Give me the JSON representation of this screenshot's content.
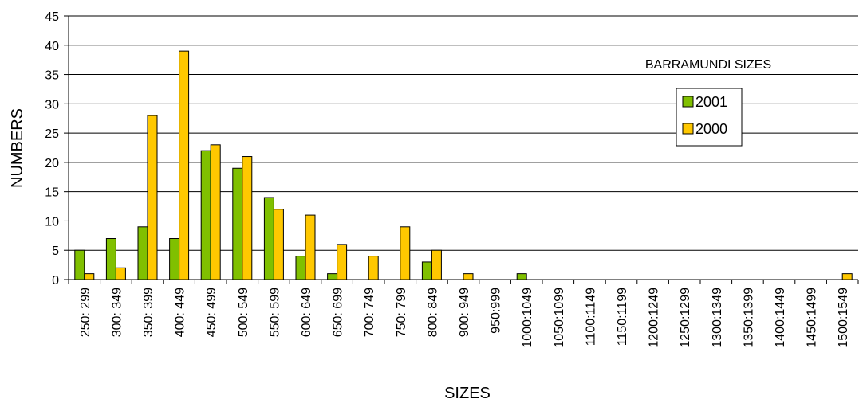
{
  "chart_data": {
    "type": "bar",
    "title": "",
    "annotation": "BARRAMUNDI SIZES",
    "xlabel": "SIZES",
    "ylabel": "NUMBERS",
    "ylim": [
      0,
      45
    ],
    "yticks": [
      0,
      5,
      10,
      15,
      20,
      25,
      30,
      35,
      40,
      45
    ],
    "grid": true,
    "legend_position": "right",
    "categories": [
      "250: 299",
      "300: 349",
      "350: 399",
      "400: 449",
      "450: 499",
      "500: 549",
      "550: 599",
      "600: 649",
      "650: 699",
      "700: 749",
      "750: 799",
      "800: 849",
      "900: 949",
      "950:999",
      "1000:1049",
      "1050:1099",
      "1100:1149",
      "1150:1199",
      "1200:1249",
      "1250:1299",
      "1300:1349",
      "1350:1399",
      "1400:1449",
      "1450:1499",
      "1500:1549"
    ],
    "series": [
      {
        "name": "2001",
        "color": "#80c000",
        "values": [
          5,
          7,
          9,
          7,
          22,
          19,
          14,
          4,
          1,
          0,
          0,
          3,
          0,
          0,
          1,
          0,
          0,
          0,
          0,
          0,
          0,
          0,
          0,
          0,
          0
        ]
      },
      {
        "name": "2000",
        "color": "#ffc800",
        "values": [
          1,
          2,
          28,
          39,
          23,
          21,
          12,
          11,
          6,
          4,
          9,
          5,
          1,
          0,
          0,
          0,
          0,
          0,
          0,
          0,
          0,
          0,
          0,
          0,
          1
        ]
      }
    ]
  }
}
